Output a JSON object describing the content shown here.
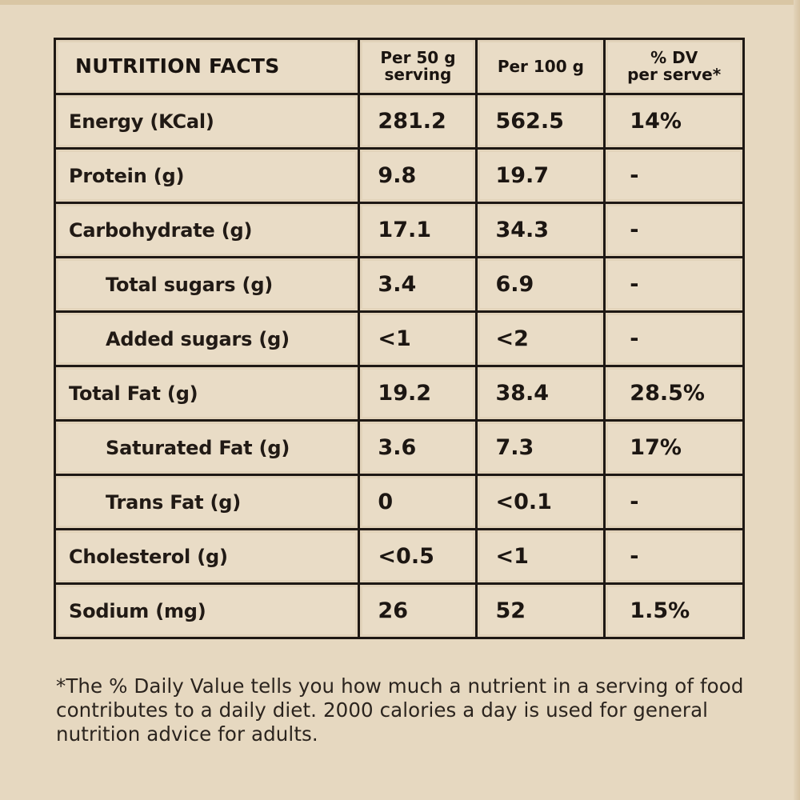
{
  "table": {
    "headers": {
      "name": "NUTRITION FACTS",
      "per50_line1": "Per 50 g",
      "per50_line2": "serving",
      "per100": "Per 100 g",
      "dv_line1": "% DV",
      "dv_line2": "per serve*"
    },
    "rows": [
      {
        "name": "Energy (KCal)",
        "per50": "281.2",
        "per100": "562.5",
        "dv": "14%",
        "indent": false
      },
      {
        "name": "Protein (g)",
        "per50": "9.8",
        "per100": "19.7",
        "dv": "-",
        "indent": false
      },
      {
        "name": "Carbohydrate (g)",
        "per50": "17.1",
        "per100": "34.3",
        "dv": "-",
        "indent": false
      },
      {
        "name": "Total sugars (g)",
        "per50": "3.4",
        "per100": "6.9",
        "dv": "-",
        "indent": true
      },
      {
        "name": "Added sugars (g)",
        "per50": "<1",
        "per100": "<2",
        "dv": "-",
        "indent": true
      },
      {
        "name": "Total Fat (g)",
        "per50": "19.2",
        "per100": "38.4",
        "dv": "28.5%",
        "indent": false
      },
      {
        "name": "Saturated Fat (g)",
        "per50": "3.6",
        "per100": "7.3",
        "dv": "17%",
        "indent": true
      },
      {
        "name": "Trans Fat (g)",
        "per50": "0",
        "per100": "<0.1",
        "dv": "-",
        "indent": true
      },
      {
        "name": "Cholesterol (g)",
        "per50": "<0.5",
        "per100": "<1",
        "dv": "-",
        "indent": false
      },
      {
        "name": "Sodium (mg)",
        "per50": "26",
        "per100": "52",
        "dv": "1.5%",
        "indent": false
      }
    ]
  },
  "footnote": "*The % Daily Value tells you how much a nutrient in a serving of food contributes to a daily diet. 2000 calories a day is used for general nutrition advice for adults.",
  "colors": {
    "background": "#e6d8c0",
    "cell": "#e9dcc6",
    "border": "#1e1814",
    "text": "#1a1410"
  }
}
